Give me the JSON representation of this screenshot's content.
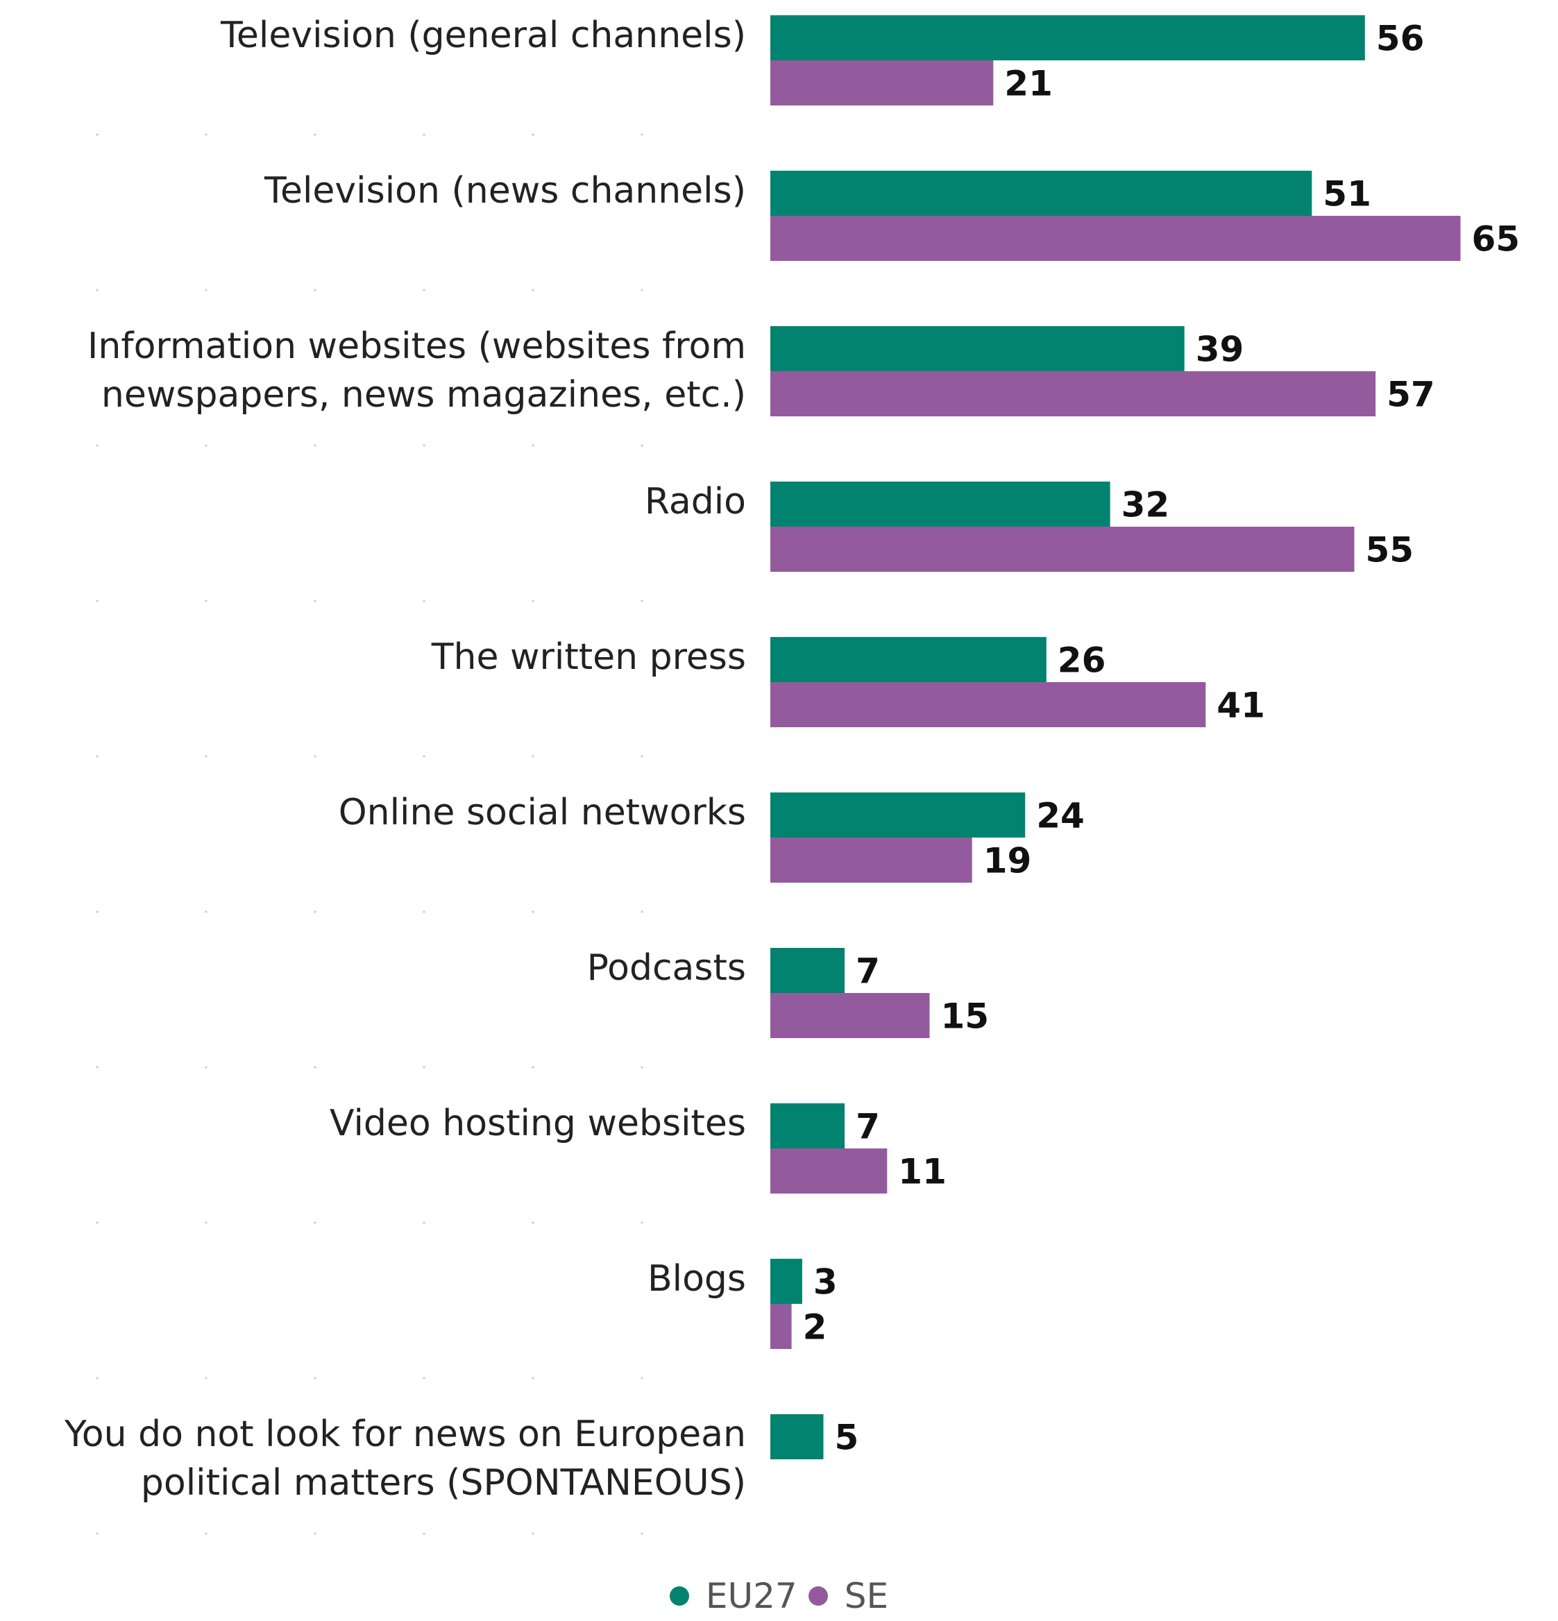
{
  "chart_data": {
    "type": "bar",
    "orientation": "horizontal",
    "categories": [
      [
        "Television (general channels)"
      ],
      [
        "Television (news channels)"
      ],
      [
        "Information websites (websites from",
        "newspapers, news magazines, etc.)"
      ],
      [
        "Radio"
      ],
      [
        "The written press"
      ],
      [
        "Online social networks"
      ],
      [
        "Podcasts"
      ],
      [
        "Video hosting websites"
      ],
      [
        "Blogs"
      ],
      [
        "You do not look for news on European",
        "political matters (SPONTANEOUS)"
      ]
    ],
    "series": [
      {
        "name": "EU27",
        "color": "#028370",
        "values": [
          56,
          51,
          39,
          32,
          26,
          24,
          7,
          7,
          3,
          5
        ]
      },
      {
        "name": "SE",
        "color": "#935B9D",
        "values": [
          21,
          65,
          57,
          55,
          41,
          19,
          15,
          11,
          2,
          null
        ]
      }
    ],
    "xlim": [
      0,
      65
    ],
    "grid": false,
    "legend_position": "bottom-center"
  }
}
